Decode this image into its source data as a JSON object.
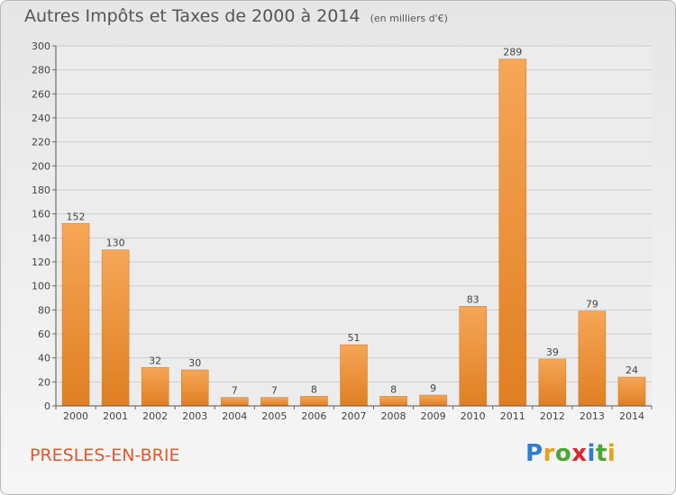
{
  "chart_data": {
    "type": "bar",
    "title": "Autres Impôts et Taxes de 2000 à 2014",
    "subtitle": "(en milliers d'€)",
    "categories": [
      "2000",
      "2001",
      "2002",
      "2003",
      "2004",
      "2005",
      "2006",
      "2007",
      "2008",
      "2009",
      "2010",
      "2011",
      "2012",
      "2013",
      "2014"
    ],
    "values": [
      152,
      130,
      32,
      30,
      7,
      7,
      8,
      51,
      8,
      9,
      83,
      289,
      39,
      79,
      24
    ],
    "ylim": [
      0,
      300
    ],
    "yticks": [
      0,
      20,
      40,
      60,
      80,
      100,
      120,
      140,
      160,
      180,
      200,
      220,
      240,
      260,
      280,
      300
    ],
    "grid": true,
    "bar_color_light": "#f5a657",
    "bar_color_dark": "#e07f22"
  },
  "footer": {
    "city": "PRESLES-EN-BRIE",
    "logo": "Proxiti"
  }
}
